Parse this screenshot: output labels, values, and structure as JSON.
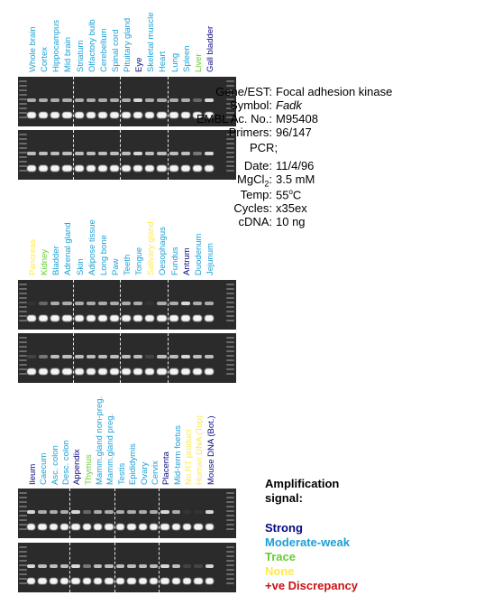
{
  "panels": [
    {
      "labels": [
        {
          "text": "Whole brain",
          "color": "#1a9fd6"
        },
        {
          "text": "Cortex",
          "color": "#1a9fd6"
        },
        {
          "text": "Hippocampus",
          "color": "#1a9fd6"
        },
        {
          "text": "Mid brain",
          "color": "#1a9fd6"
        },
        {
          "text": "Striatum",
          "color": "#1a9fd6"
        },
        {
          "text": "Olfactory bulb",
          "color": "#1a9fd6"
        },
        {
          "text": "Cerebellum",
          "color": "#1a9fd6"
        },
        {
          "text": "Spinal cord",
          "color": "#1a9fd6"
        },
        {
          "text": "Pituitary gland",
          "color": "#1a9fd6"
        },
        {
          "text": "Eye",
          "color": "#0a0a80"
        },
        {
          "text": "Skeletal muscle",
          "color": "#1a9fd6"
        },
        {
          "text": "Heart",
          "color": "#1a9fd6"
        },
        {
          "text": "Lung",
          "color": "#1a9fd6"
        },
        {
          "text": "Spleen",
          "color": "#1a9fd6"
        },
        {
          "text": "Liver",
          "color": "#66cc33"
        },
        {
          "text": "Gall bladder",
          "color": "#0a0a80"
        }
      ]
    },
    {
      "labels": [
        {
          "text": "Pancreas",
          "color": "#ffe84d"
        },
        {
          "text": "Kidney",
          "color": "#66cc33"
        },
        {
          "text": "Bladder",
          "color": "#1a9fd6"
        },
        {
          "text": "Adrenal gland",
          "color": "#1a9fd6"
        },
        {
          "text": "Skin",
          "color": "#1a9fd6"
        },
        {
          "text": "Adipose tissue",
          "color": "#1a9fd6"
        },
        {
          "text": "Long bone",
          "color": "#1a9fd6"
        },
        {
          "text": "Paw",
          "color": "#1a9fd6"
        },
        {
          "text": "Teeth",
          "color": "#1a9fd6"
        },
        {
          "text": "Tongue",
          "color": "#1a9fd6"
        },
        {
          "text": "Salivary gland",
          "color": "#ffe84d"
        },
        {
          "text": "Oesophagus",
          "color": "#1a9fd6"
        },
        {
          "text": "Fundus",
          "color": "#1a9fd6"
        },
        {
          "text": "Antrum",
          "color": "#0a0a80"
        },
        {
          "text": "Duodenum",
          "color": "#1a9fd6"
        },
        {
          "text": "Jejunum",
          "color": "#1a9fd6"
        }
      ]
    },
    {
      "labels": [
        {
          "text": "Ileum",
          "color": "#0a0a80"
        },
        {
          "text": "Caecum",
          "color": "#1a9fd6"
        },
        {
          "text": "Asc. colon",
          "color": "#1a9fd6"
        },
        {
          "text": "Desc. colon",
          "color": "#1a9fd6"
        },
        {
          "text": "Appendix",
          "color": "#0a0a80"
        },
        {
          "text": "Thymus",
          "color": "#66cc33"
        },
        {
          "text": "Mamm.gland non-preg.",
          "color": "#1a9fd6"
        },
        {
          "text": "Mamm.gland preg.",
          "color": "#1a9fd6"
        },
        {
          "text": "Testis",
          "color": "#1a9fd6"
        },
        {
          "text": "Epididymis",
          "color": "#1a9fd6"
        },
        {
          "text": "Ovary",
          "color": "#1a9fd6"
        },
        {
          "text": "Cervix",
          "color": "#1a9fd6"
        },
        {
          "text": "Placenta",
          "color": "#0a0a80"
        },
        {
          "text": "Mid-term foetus",
          "color": "#1a9fd6"
        },
        {
          "text": "No RT product",
          "color": "#ffe84d"
        },
        {
          "text": "Human DNA (Top)",
          "color": "#ffe84d"
        },
        {
          "text": "Mouse DNA (Bot.)",
          "color": "#0a0a80"
        }
      ]
    }
  ],
  "info": {
    "gene_label": "Gene/EST:",
    "gene_value": "Focal adhesion kinase",
    "symbol_label": "Symbol:",
    "symbol_value": "Fadk",
    "embl_label": "EMBL Ac. No.:",
    "embl_value": "M95408",
    "primers_label": "Primers:",
    "primers_value": "96/147",
    "pcr_label": "PCR;",
    "date_label": "Date:",
    "date_value": "11/4/96",
    "mgcl_label_main": "MgCl",
    "mgcl_label_sub": "2",
    "mgcl_label_end": ":",
    "mgcl_value": "3.5 mM",
    "temp_label": "Temp:",
    "temp_value_main": "55",
    "temp_value_sup": "o",
    "temp_value_end": "C",
    "cycles_label": "Cycles:",
    "cycles_value": "x35ex",
    "cdna_label": "cDNA:",
    "cdna_value": "10 ng"
  },
  "legend": {
    "title_line1": "Amplification",
    "title_line2": "signal:",
    "items": [
      {
        "text": "Strong",
        "color": "#0a0a80"
      },
      {
        "text": "Moderate-weak",
        "color": "#1a9fd6"
      },
      {
        "text": "Trace",
        "color": "#66cc33"
      },
      {
        "text": "None",
        "color": "#ffe84d"
      },
      {
        "text": "+ve Discrepancy",
        "color": "#cc1111"
      }
    ]
  }
}
